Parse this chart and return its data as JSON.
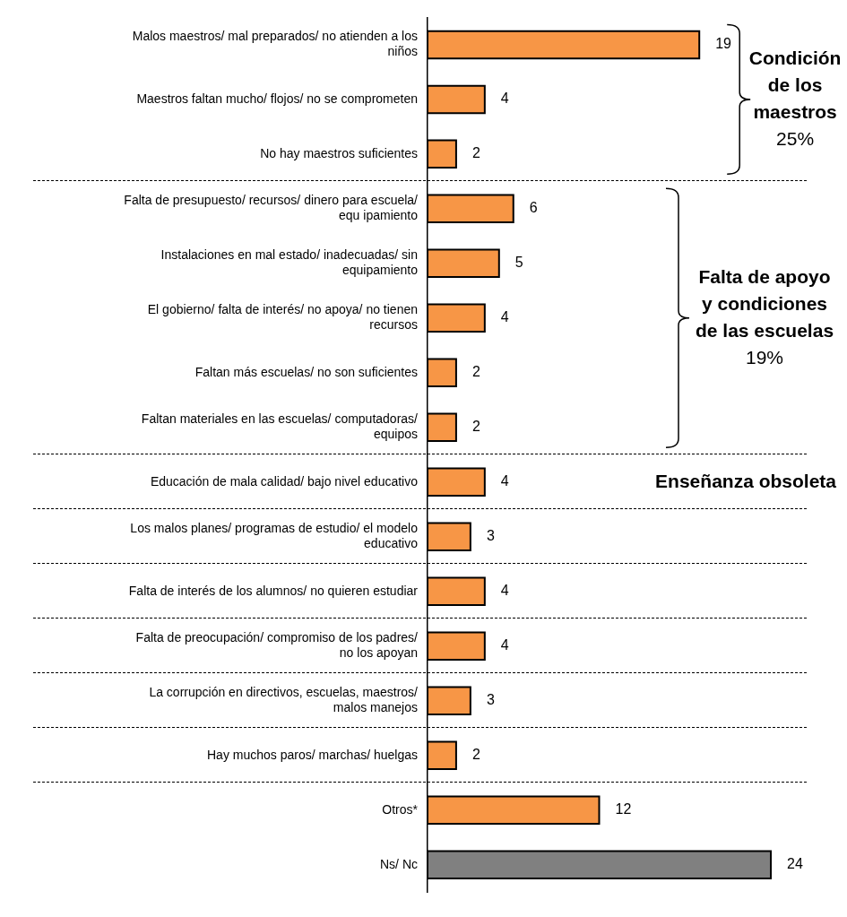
{
  "chart_data": {
    "type": "bar",
    "orientation": "horizontal",
    "data_labels": true,
    "categories": [
      "Malos maestros/ mal preparados/ no atienden a los niños",
      "Maestros faltan mucho/ flojos/ no se comprometen",
      "No hay maestros suficientes",
      "Falta de presupuesto/ recursos/ dinero para escuela/ equ ipamiento",
      "Instalaciones en mal estado/ inadecuadas/ sin equipamiento",
      "El gobierno/ falta de interés/ no apoya/ no tienen recursos",
      "Faltan más escuelas/ no son suficientes",
      "Faltan materiales en las escuelas/ computadoras/ equipos",
      "Educación de mala calidad/ bajo nivel educativo",
      "Los malos planes/ programas de estudio/ el modelo educativo",
      "Falta de interés de los alumnos/ no quieren estudiar",
      "Falta de preocupación/ compromiso de los padres/ no los apoyan",
      "La corrupción en directivos, escuelas, maestros/ malos manejos",
      "Hay muchos paros/ marchas/ huelgas",
      "Otros*",
      "Ns/ Nc"
    ],
    "values": [
      19,
      4,
      2,
      6,
      5,
      4,
      2,
      2,
      4,
      3,
      4,
      4,
      3,
      2,
      12,
      24
    ],
    "colors": [
      "#f79646",
      "#f79646",
      "#f79646",
      "#f79646",
      "#f79646",
      "#f79646",
      "#f79646",
      "#f79646",
      "#f79646",
      "#f79646",
      "#f79646",
      "#f79646",
      "#f79646",
      "#f79646",
      "#f79646",
      "#808080"
    ],
    "annotations": [
      "Condición de los maestros 25%",
      "Falta de apoyo y condiciones de las escuelas 19%",
      "Enseñanza obsoleta"
    ]
  }
}
